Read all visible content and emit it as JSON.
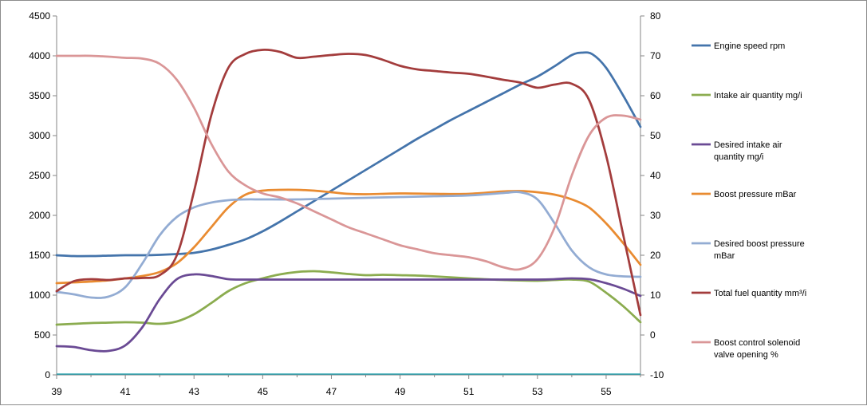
{
  "chart_data": {
    "type": "line",
    "title": "",
    "xlabel": "",
    "ylabel": "",
    "y2label": "",
    "xlim": [
      39,
      56
    ],
    "x_ticks": [
      39,
      41,
      43,
      45,
      47,
      49,
      51,
      53,
      55
    ],
    "ylim": [
      0,
      4500
    ],
    "y_ticks": [
      0,
      500,
      1000,
      1500,
      2000,
      2500,
      3000,
      3500,
      4000,
      4500
    ],
    "y2lim": [
      -10,
      80
    ],
    "y2_ticks": [
      -10,
      0,
      10,
      20,
      30,
      40,
      50,
      60,
      70,
      80
    ],
    "grid": false,
    "legend_position": "right",
    "baseline": {
      "axis": "y",
      "value": 0,
      "color": "#2aa3b0"
    },
    "series": [
      {
        "name": "Engine speed rpm",
        "axis": "left",
        "color": "#4474ab",
        "x": [
          39,
          39.5,
          40,
          40.5,
          41,
          41.5,
          42,
          42.5,
          43,
          43.5,
          44,
          44.5,
          45,
          45.5,
          46,
          46.5,
          47,
          47.5,
          48,
          48.5,
          49,
          49.5,
          50,
          50.5,
          51,
          51.5,
          52,
          52.5,
          53,
          53.5,
          54,
          54.3,
          54.6,
          55,
          55.5,
          56
        ],
        "values": [
          1500,
          1490,
          1490,
          1495,
          1500,
          1500,
          1505,
          1515,
          1530,
          1570,
          1630,
          1700,
          1800,
          1920,
          2050,
          2180,
          2310,
          2440,
          2570,
          2700,
          2830,
          2960,
          3080,
          3200,
          3310,
          3420,
          3530,
          3640,
          3740,
          3870,
          4010,
          4040,
          4020,
          3850,
          3500,
          3110
        ]
      },
      {
        "name": "Intake air quantity mg/i",
        "axis": "left",
        "color": "#8bac4f",
        "x": [
          39,
          39.5,
          40,
          40.5,
          41,
          41.5,
          42,
          42.5,
          43,
          43.5,
          44,
          44.5,
          45,
          45.5,
          46,
          46.5,
          47,
          47.5,
          48,
          48.5,
          49,
          49.5,
          50,
          51,
          52,
          53,
          53.5,
          54,
          54.5,
          55,
          55.5,
          56
        ],
        "values": [
          630,
          640,
          650,
          655,
          660,
          655,
          640,
          670,
          760,
          900,
          1050,
          1150,
          1210,
          1260,
          1290,
          1300,
          1285,
          1265,
          1250,
          1255,
          1250,
          1245,
          1235,
          1210,
          1190,
          1180,
          1190,
          1195,
          1170,
          1030,
          860,
          660
        ]
      },
      {
        "name": "Desired intake air quantity  mg/i",
        "axis": "left",
        "color": "#6a4a94",
        "x": [
          39,
          39.5,
          40,
          40.5,
          41,
          41.5,
          42,
          42.5,
          43,
          43.5,
          44,
          44.5,
          45,
          46,
          47,
          48,
          49,
          50,
          51,
          52,
          53,
          53.5,
          54,
          54.5,
          55,
          55.5,
          56
        ],
        "values": [
          360,
          350,
          310,
          300,
          370,
          600,
          950,
          1200,
          1260,
          1240,
          1200,
          1195,
          1195,
          1195,
          1195,
          1195,
          1195,
          1195,
          1195,
          1195,
          1195,
          1200,
          1210,
          1200,
          1150,
          1080,
          990
        ]
      },
      {
        "name": "Boost pressure mBar",
        "axis": "left",
        "color": "#e98b31",
        "x": [
          39,
          39.5,
          40,
          40.5,
          41,
          41.5,
          42,
          42.5,
          43,
          43.5,
          44,
          44.5,
          45,
          45.5,
          46,
          46.5,
          47,
          47.5,
          48,
          49,
          50,
          51,
          52,
          52.5,
          53,
          53.5,
          54,
          54.5,
          55,
          55.5,
          56
        ],
        "values": [
          1150,
          1160,
          1170,
          1185,
          1210,
          1240,
          1290,
          1400,
          1600,
          1850,
          2100,
          2260,
          2310,
          2320,
          2320,
          2310,
          2290,
          2270,
          2265,
          2275,
          2270,
          2270,
          2300,
          2305,
          2290,
          2260,
          2200,
          2100,
          1900,
          1650,
          1380
        ]
      },
      {
        "name": "Desired boost pressure mBar",
        "axis": "left",
        "color": "#93acd3",
        "x": [
          39,
          39.5,
          40,
          40.5,
          41,
          41.5,
          42,
          42.5,
          43,
          43.5,
          44,
          44.5,
          45,
          46,
          47,
          48,
          49,
          50,
          51,
          52,
          52.5,
          53,
          53.5,
          54,
          54.5,
          55,
          55.5,
          56
        ],
        "values": [
          1040,
          1010,
          970,
          980,
          1100,
          1400,
          1750,
          1980,
          2100,
          2160,
          2190,
          2200,
          2200,
          2200,
          2210,
          2220,
          2230,
          2240,
          2250,
          2280,
          2290,
          2200,
          1900,
          1560,
          1350,
          1260,
          1235,
          1230
        ]
      },
      {
        "name": "Total fuel quantity  mm³/i",
        "axis": "right",
        "color": "#a33c3c",
        "x": [
          39,
          39.5,
          40,
          40.5,
          41,
          41.5,
          42,
          42.5,
          43,
          43.5,
          44,
          44.5,
          45,
          45.5,
          46,
          46.5,
          47,
          47.5,
          48,
          48.5,
          49,
          49.5,
          50,
          50.5,
          51,
          51.5,
          52,
          52.5,
          53,
          53.5,
          54,
          54.5,
          55,
          55.5,
          56
        ],
        "values": [
          11,
          13.5,
          14,
          13.8,
          14.2,
          14.3,
          15,
          20,
          36,
          55,
          67,
          70.5,
          71.5,
          71,
          69.5,
          69.8,
          70.2,
          70.5,
          70.2,
          69,
          67.5,
          66.6,
          66.2,
          65.8,
          65.5,
          64.8,
          64,
          63.3,
          62,
          62.8,
          63,
          59,
          45,
          25,
          5
        ]
      },
      {
        "name": "Boost control solenoid valve opening %",
        "axis": "right",
        "color": "#da9697",
        "x": [
          39,
          39.5,
          40,
          40.5,
          41,
          41.5,
          42,
          42.5,
          43,
          43.5,
          44,
          44.5,
          45,
          45.5,
          46,
          46.5,
          47,
          47.5,
          48,
          48.5,
          49,
          49.5,
          50,
          50.5,
          51,
          51.5,
          52,
          52.5,
          53,
          53.5,
          54,
          54.5,
          55,
          55.5,
          56
        ],
        "values": [
          70,
          70,
          70,
          69.8,
          69.5,
          69.3,
          68,
          64,
          57,
          48,
          41,
          37.5,
          35.5,
          34.5,
          33,
          31,
          29,
          27,
          25.5,
          24,
          22.5,
          21.5,
          20.5,
          20,
          19.5,
          18.5,
          17,
          16.5,
          19,
          27,
          40,
          50,
          54.5,
          55,
          54
        ]
      }
    ]
  }
}
